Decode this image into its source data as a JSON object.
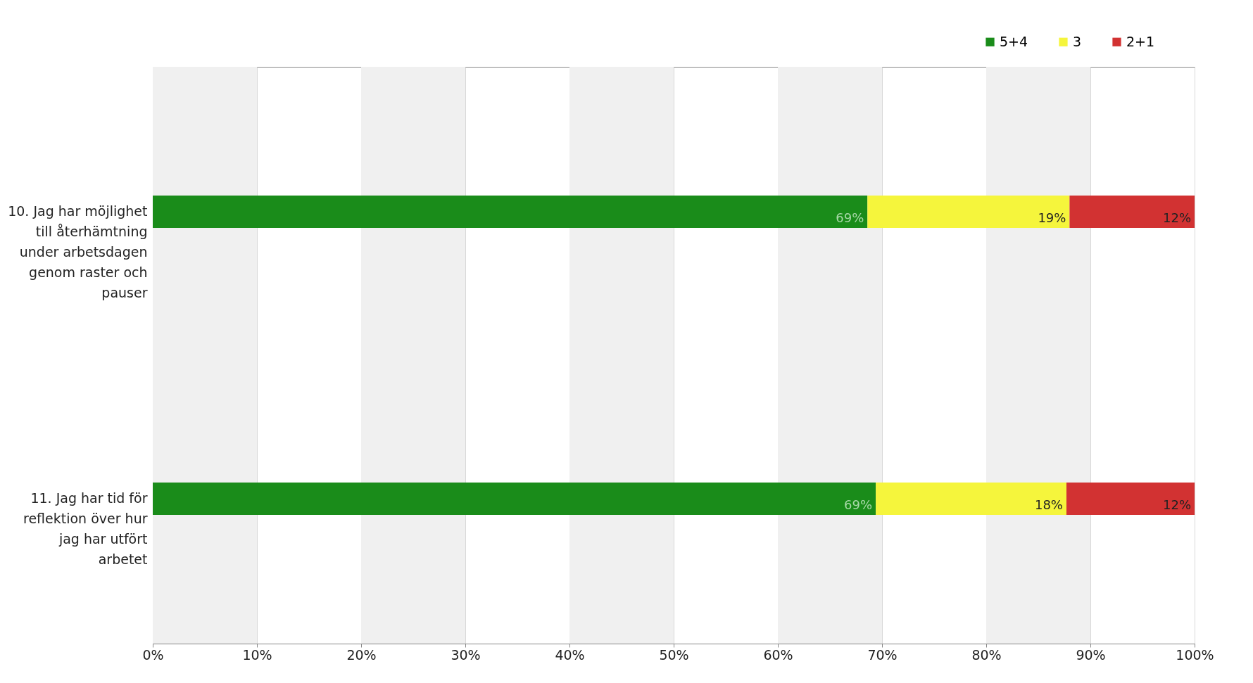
{
  "chart_data": {
    "type": "bar",
    "orientation": "horizontal",
    "stacked": true,
    "categories": [
      "10. Jag har möjlighet till återhämtning under arbetsdagen genom raster och pauser",
      "11. Jag har tid för reflektion över hur jag har utfört arbetet"
    ],
    "series": [
      {
        "name": "5+4",
        "color": "#1a8c1a",
        "values": [
          68.6,
          69.4
        ],
        "value_labels": [
          "69%",
          "69%"
        ]
      },
      {
        "name": "3",
        "color": "#f5f53c",
        "values": [
          19.4,
          18.3
        ],
        "value_labels": [
          "19%",
          "18%"
        ]
      },
      {
        "name": "2+1",
        "color": "#d23232",
        "values": [
          12.0,
          12.3
        ],
        "value_labels": [
          "12%",
          "12%"
        ]
      }
    ],
    "xlim": [
      0,
      100
    ],
    "xticks": [
      {
        "value": 0,
        "label": "0%"
      },
      {
        "value": 10,
        "label": "10%"
      },
      {
        "value": 20,
        "label": "20%"
      },
      {
        "value": 30,
        "label": "30%"
      },
      {
        "value": 40,
        "label": "40%"
      },
      {
        "value": 50,
        "label": "50%"
      },
      {
        "value": 60,
        "label": "60%"
      },
      {
        "value": 70,
        "label": "70%"
      },
      {
        "value": 80,
        "label": "80%"
      },
      {
        "value": 90,
        "label": "90%"
      },
      {
        "value": 100,
        "label": "100%"
      }
    ],
    "bands": [
      {
        "axis": "x",
        "from": 0,
        "to": 10,
        "color": "#f0f0f0"
      },
      {
        "axis": "x",
        "from": 20,
        "to": 30,
        "color": "#f0f0f0"
      },
      {
        "axis": "x",
        "from": 40,
        "to": 50,
        "color": "#f0f0f0"
      },
      {
        "axis": "x",
        "from": 60,
        "to": 70,
        "color": "#f0f0f0"
      },
      {
        "axis": "x",
        "from": 80,
        "to": 90,
        "color": "#f0f0f0"
      }
    ],
    "grid": "x",
    "legend": "top right"
  }
}
